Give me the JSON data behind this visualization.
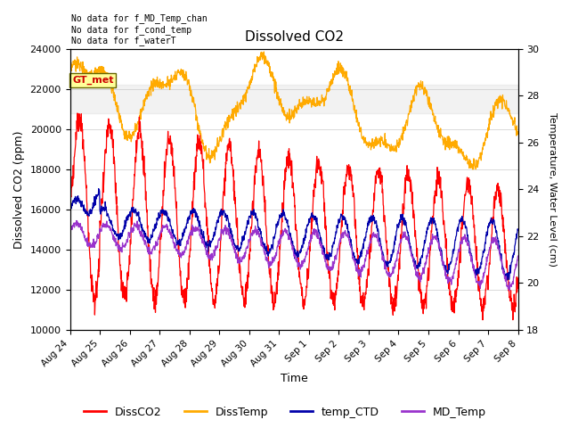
{
  "title": "Dissolved CO2",
  "xlabel": "Time",
  "ylabel_left": "Dissolved CO2 (ppm)",
  "ylabel_right": "Temperature, Water Level (cm)",
  "ylim_left": [
    10000,
    24000
  ],
  "ylim_right": [
    18,
    30
  ],
  "yticks_left": [
    10000,
    12000,
    14000,
    16000,
    18000,
    20000,
    22000,
    24000
  ],
  "yticks_right": [
    18,
    20,
    22,
    24,
    26,
    28,
    30
  ],
  "xtick_labels": [
    "Aug 24",
    "Aug 25",
    "Aug 26",
    "Aug 27",
    "Aug 28",
    "Aug 29",
    "Aug 30",
    "Aug 31",
    "Sep 1",
    "Sep 2",
    "Sep 3",
    "Sep 4",
    "Sep 5",
    "Sep 6",
    "Sep 7",
    "Sep 8"
  ],
  "legend_labels": [
    "DissCO2",
    "DissTemp",
    "temp_CTD",
    "MD_Temp"
  ],
  "legend_colors": [
    "#ff0000",
    "#ffaa00",
    "#0000aa",
    "#9933cc"
  ],
  "annotations": [
    "No data for f_MD_Temp_chan",
    "No data for f_cond_temp",
    "No data for f_waterT"
  ],
  "gray_band": [
    20800,
    22200
  ],
  "background_color": "#ffffff"
}
